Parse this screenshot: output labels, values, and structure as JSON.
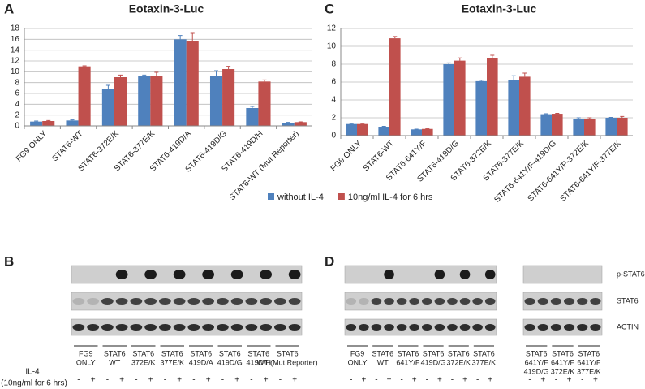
{
  "chart_data": [
    {
      "type": "bar",
      "panel": "A",
      "title": "Eotaxin-3-Luc",
      "categories": [
        "FG9 ONLY",
        "STAT6-WT",
        "STAT6-372E/K",
        "STAT6-377E/K",
        "STAT6-419D/A",
        "STAT6-419D/G",
        "STAT6-419D/H",
        "STAT6-WT (Mut Reporter)"
      ],
      "series": [
        {
          "name": "without IL-4",
          "color": "#4f81bd",
          "values": [
            0.8,
            1.0,
            6.8,
            9.2,
            16.0,
            9.2,
            3.3,
            0.6
          ],
          "errors": [
            0.1,
            0.1,
            0.7,
            0.2,
            0.7,
            1.0,
            0.3,
            0.05
          ]
        },
        {
          "name": "10ng/ml IL-4 for 6 hrs",
          "color": "#c0504d",
          "values": [
            0.9,
            11.0,
            9.0,
            9.3,
            15.7,
            10.5,
            8.2,
            0.7
          ],
          "errors": [
            0.1,
            0.1,
            0.4,
            0.6,
            1.4,
            0.5,
            0.3,
            0.05
          ]
        }
      ],
      "ylim": [
        0,
        18
      ],
      "yticks": [
        0,
        2,
        4,
        6,
        8,
        10,
        12,
        14,
        16,
        18
      ],
      "grid": true
    },
    {
      "type": "bar",
      "panel": "C",
      "title": "Eotaxin-3-Luc",
      "categories": [
        "FG9 ONLY",
        "STAT6-WT",
        "STAT6-641Y/F",
        "STAT6-419D/G",
        "STAT6-372E/K",
        "STAT6-377E/K",
        "STAT6-641Y/F-419D/G",
        "STAT6-641Y/F-372E/K",
        "STAT6-641Y/F-377E/K"
      ],
      "series": [
        {
          "color": "#4f81bd",
          "values": [
            1.3,
            1.0,
            0.7,
            8.0,
            6.1,
            6.2,
            2.4,
            1.9,
            2.0
          ],
          "errors": [
            0.05,
            0.05,
            0.03,
            0.15,
            0.1,
            0.5,
            0.05,
            0.1,
            0.05
          ]
        },
        {
          "color": "#c0504d",
          "values": [
            1.3,
            10.9,
            0.75,
            8.4,
            8.7,
            6.6,
            2.45,
            1.9,
            2.0
          ],
          "errors": [
            0.05,
            0.2,
            0.03,
            0.3,
            0.3,
            0.4,
            0.05,
            0.1,
            0.15
          ]
        }
      ],
      "ylim": [
        0,
        12
      ],
      "yticks": [
        0,
        2,
        4,
        6,
        8,
        10,
        12
      ],
      "grid": true
    }
  ],
  "blots": {
    "B": {
      "panel": "B",
      "groups": [
        [
          "FG9",
          "ONLY"
        ],
        [
          "STAT6",
          "WT"
        ],
        [
          "STAT6",
          "372E/K"
        ],
        [
          "STAT6",
          "377E/K"
        ],
        [
          "STAT6",
          "419D/A"
        ],
        [
          "STAT6",
          "419D/G"
        ],
        [
          "STAT6",
          "419D/H"
        ],
        [
          "STAT6",
          "WT (Mut Reporter)"
        ]
      ]
    },
    "D": {
      "panel": "D",
      "groups": [
        [
          "FG9",
          "ONLY"
        ],
        [
          "STAT6",
          "WT"
        ],
        [
          "STAT6",
          "641Y/F"
        ],
        [
          "STAT6",
          "419D/G"
        ],
        [
          "STAT6",
          "372E/K"
        ],
        [
          "STAT6",
          "377E/K"
        ]
      ],
      "groups_right": [
        [
          "STAT6",
          "641Y/F",
          "419D/G"
        ],
        [
          "STAT6",
          "641Y/F",
          "372E/K"
        ],
        [
          "STAT6",
          "641Y/F",
          "377E/K"
        ]
      ]
    },
    "row_labels": [
      "p-STAT6",
      "STAT6",
      "ACTIN"
    ],
    "treatment": [
      "IL-4",
      "(10ng/ml for 6 hrs)"
    ],
    "signs": [
      "-",
      "+"
    ]
  }
}
